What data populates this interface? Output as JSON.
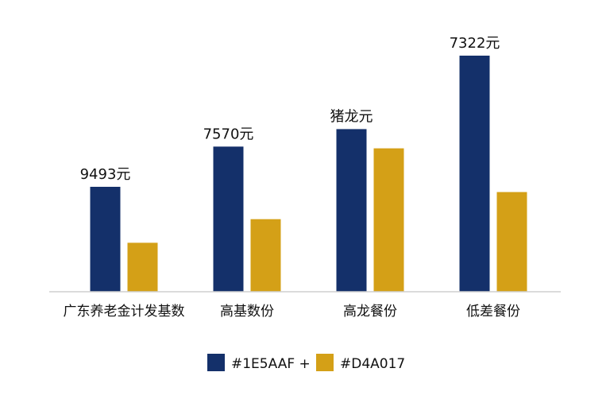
{
  "chart_data": {
    "type": "bar",
    "categories": [
      "广东养老金计发基数",
      "高基数份",
      "高龙餐份",
      "低差餐份"
    ],
    "series": [
      {
        "name": "#1E5AAF +",
        "color": "#14306A",
        "values": [
          1200,
          1660,
          1860,
          2700
        ]
      },
      {
        "name": "#D4A017",
        "color": "#D4A017",
        "values": [
          560,
          830,
          1640,
          1140
        ]
      }
    ],
    "value_labels": [
      "9493元",
      "7570元",
      "猪龙元",
      "7322元"
    ],
    "ylim": [
      0,
      3000
    ],
    "grid": false,
    "legend": {
      "position": "bottom"
    },
    "title": "",
    "xlabel": "",
    "ylabel": ""
  }
}
